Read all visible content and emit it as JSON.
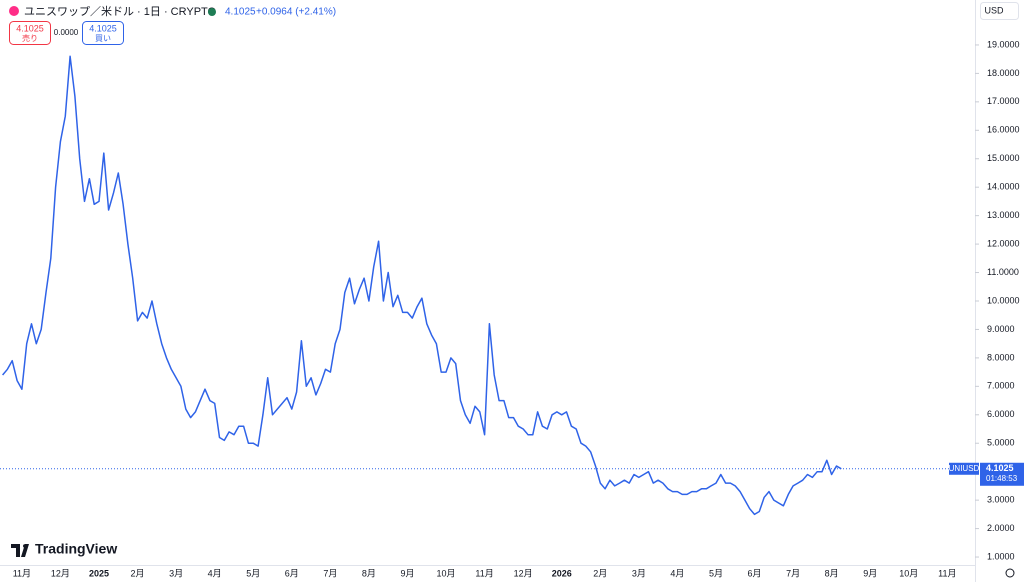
{
  "header": {
    "title": "ユニスワップ／米ドル · 1日 · CRYPTO",
    "last": "4.1025",
    "change": "+0.0964 (+2.41%)",
    "sell_price": "4.1025",
    "sell": "売り",
    "spread": "0.0000",
    "buy_price": "4.1025",
    "buy": "買い",
    "currency": "USD",
    "logo": "TradingView",
    "tag_symbol": "UNIUSD",
    "tag_price": "4.1025",
    "tag_countdown": "01:48:53"
  },
  "chart_data": {
    "type": "line",
    "current_price": 4.1025,
    "categories": [
      null,
      null,
      null,
      null,
      "11月",
      null,
      null,
      null,
      null,
      null,
      null,
      null,
      "12月",
      null,
      null,
      null,
      null,
      null,
      null,
      null,
      "2025",
      null,
      null,
      null,
      null,
      null,
      null,
      null,
      "2月",
      null,
      null,
      null,
      null,
      null,
      null,
      null,
      "3月",
      null,
      null,
      null,
      null,
      null,
      null,
      null,
      "4月",
      null,
      null,
      null,
      null,
      null,
      null,
      null,
      "5月",
      null,
      null,
      null,
      null,
      null,
      null,
      null,
      "6月",
      null,
      null,
      null,
      null,
      null,
      null,
      null,
      "7月",
      null,
      null,
      null,
      null,
      null,
      null,
      null,
      "8月",
      null,
      null,
      null,
      null,
      null,
      null,
      null,
      "9月",
      null,
      null,
      null,
      null,
      null,
      null,
      null,
      "10月",
      null,
      null,
      null,
      null,
      null,
      null,
      null,
      "11月",
      null,
      null,
      null,
      null,
      null,
      null,
      null,
      "12月",
      null,
      null,
      null,
      null,
      null,
      null,
      null,
      "2026",
      null,
      null,
      null,
      null,
      null,
      null,
      null,
      "2月",
      null,
      null,
      null,
      null,
      null,
      null,
      null,
      "3月",
      null,
      null,
      null,
      null,
      null,
      null,
      null,
      "4月",
      null,
      null,
      null,
      null,
      null,
      null,
      null,
      "5月",
      null,
      null,
      null,
      null,
      null,
      null,
      null,
      "6月",
      null,
      null,
      null,
      null,
      null,
      null,
      null,
      "7月",
      null,
      null,
      null,
      null,
      null,
      null,
      null,
      "8月",
      null,
      null,
      null,
      null,
      null,
      null,
      null,
      "9月",
      null,
      null,
      null,
      null,
      null,
      null,
      null,
      "10月",
      null,
      null,
      null,
      null,
      null,
      null,
      null,
      "11月",
      null,
      null,
      null,
      null,
      null
    ],
    "series": [
      {
        "name": "UNIUSD",
        "color": "#2f63e8",
        "values": [
          7.4,
          7.6,
          7.9,
          7.2,
          6.9,
          8.5,
          9.2,
          8.5,
          9.0,
          10.3,
          11.5,
          14.0,
          15.6,
          16.5,
          18.6,
          17.2,
          15.0,
          13.5,
          14.3,
          13.4,
          13.5,
          15.2,
          13.2,
          13.8,
          14.5,
          13.4,
          12.0,
          10.8,
          9.3,
          9.6,
          9.4,
          10.0,
          9.2,
          8.5,
          8.0,
          7.6,
          7.3,
          7.0,
          6.2,
          5.9,
          6.1,
          6.5,
          6.9,
          6.5,
          6.4,
          5.2,
          5.1,
          5.4,
          5.3,
          5.6,
          5.6,
          5.0,
          5.0,
          4.9,
          6.0,
          7.3,
          6.0,
          6.2,
          6.4,
          6.6,
          6.2,
          6.8,
          8.6,
          7.0,
          7.3,
          6.7,
          7.1,
          7.6,
          7.5,
          8.5,
          9.0,
          10.3,
          10.8,
          9.9,
          10.4,
          10.8,
          10.0,
          11.2,
          12.1,
          10.0,
          11.0,
          9.8,
          10.2,
          9.6,
          9.6,
          9.4,
          9.8,
          10.1,
          9.2,
          8.8,
          8.5,
          7.5,
          7.5,
          8.0,
          7.8,
          6.5,
          6.0,
          5.7,
          6.3,
          6.1,
          5.3,
          9.2,
          7.4,
          6.5,
          6.5,
          5.9,
          5.9,
          5.6,
          5.5,
          5.3,
          5.3,
          6.1,
          5.6,
          5.5,
          6.0,
          6.1,
          6.0,
          6.1,
          5.6,
          5.5,
          5.0,
          4.9,
          4.7,
          4.2,
          3.6,
          3.4,
          3.7,
          3.5,
          3.6,
          3.7,
          3.6,
          3.9,
          3.8,
          3.9,
          4.0,
          3.6,
          3.7,
          3.6,
          3.4,
          3.3,
          3.3,
          3.2,
          3.2,
          3.3,
          3.3,
          3.4,
          3.4,
          3.5,
          3.6,
          3.9,
          3.6,
          3.6,
          3.5,
          3.3,
          3.0,
          2.7,
          2.5,
          2.6,
          3.1,
          3.3,
          3.0,
          2.9,
          2.8,
          3.2,
          3.5,
          3.6,
          3.7,
          3.9,
          3.8,
          4.0,
          4.0,
          4.4,
          3.9,
          4.2,
          4.1025,
          null,
          null,
          null,
          null,
          null,
          null,
          null,
          null,
          null,
          null,
          null,
          null,
          null,
          null,
          null,
          null,
          null,
          null,
          null,
          null,
          null,
          null,
          null,
          null,
          null,
          null,
          null
        ]
      }
    ],
    "ylim": [
      0.72,
      20.58
    ],
    "yticks": [
      {
        "value": 1,
        "label": "1.0000"
      },
      {
        "value": 2,
        "label": "2.0000"
      },
      {
        "value": 3,
        "label": "3.0000"
      },
      {
        "value": 4,
        "label": "4.0000"
      },
      {
        "value": 5,
        "label": "5.0000"
      },
      {
        "value": 6,
        "label": "6.0000"
      },
      {
        "value": 7,
        "label": "7.0000"
      },
      {
        "value": 8,
        "label": "8.0000"
      },
      {
        "value": 9,
        "label": "9.0000"
      },
      {
        "value": 10,
        "label": "10.0000"
      },
      {
        "value": 11,
        "label": "11.0000"
      },
      {
        "value": 12,
        "label": "12.0000"
      },
      {
        "value": 13,
        "label": "13.0000"
      },
      {
        "value": 14,
        "label": "14.0000"
      },
      {
        "value": 15,
        "label": "15.0000"
      },
      {
        "value": 16,
        "label": "16.0000"
      },
      {
        "value": 17,
        "label": "17.0000"
      },
      {
        "value": 18,
        "label": "18.0000"
      },
      {
        "value": 19,
        "label": "19.0000"
      }
    ]
  }
}
